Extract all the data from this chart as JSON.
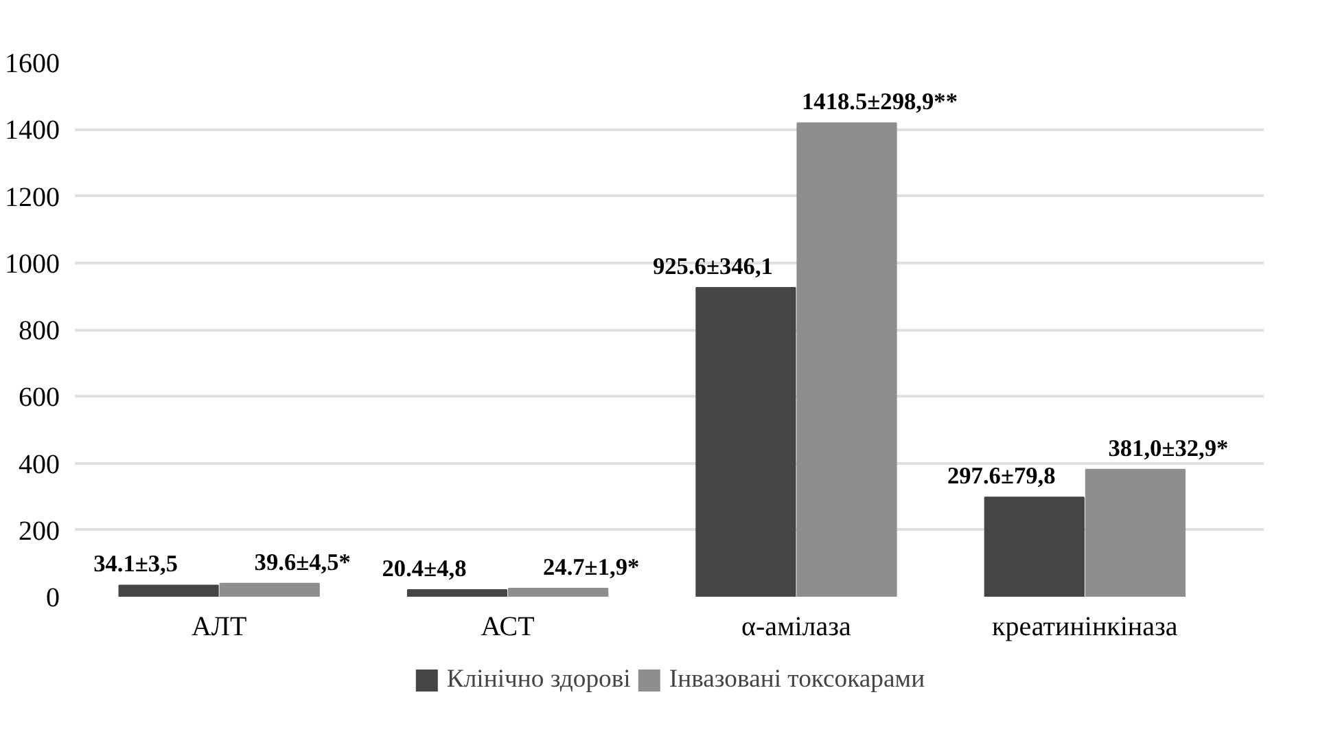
{
  "chart_data": {
    "type": "bar",
    "categories": [
      "АЛТ",
      "АСТ",
      "α-амілаза",
      "креатинінкіназа"
    ],
    "series": [
      {
        "name": "Клінічно здорові",
        "color": "#454545",
        "values": [
          34.1,
          20.4,
          925.6,
          297.6
        ],
        "value_labels": [
          "34.1±3,5",
          "20.4±4,8",
          "925.6±346,1",
          "297.6±79,8"
        ]
      },
      {
        "name": "Інвазовані токсокарами",
        "color": "#8e8e8e",
        "values": [
          39.6,
          24.7,
          1418.5,
          381.0
        ],
        "value_labels": [
          "39.6±4,5*",
          "24.7±1,9*",
          "1418.5±298,9**",
          "381,0±32,9*"
        ]
      }
    ],
    "ylim": [
      0,
      1600
    ],
    "yticks": [
      0,
      200,
      400,
      600,
      800,
      1000,
      1200,
      1400,
      1600
    ],
    "grid": "y",
    "legend": "bottom"
  }
}
